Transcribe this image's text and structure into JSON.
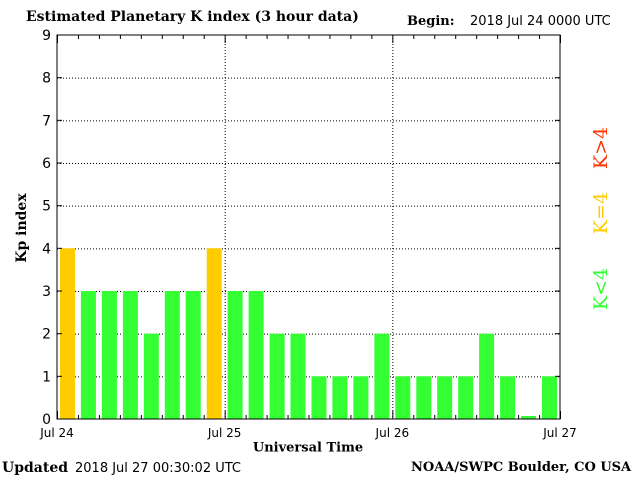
{
  "header": {
    "title": "Estimated Planetary K index (3 hour data)",
    "begin_label": "Begin:",
    "begin_value": "2018 Jul 24 0000 UTC"
  },
  "footer": {
    "updated_label": "Updated",
    "updated_value": "2018 Jul 27 00:30:02 UTC",
    "credit": "NOAA/SWPC Boulder, CO USA"
  },
  "legend": {
    "items": [
      {
        "label": "K<4",
        "color": "#33ff33"
      },
      {
        "label": "K=4",
        "color": "#ffcc00"
      },
      {
        "label": "K>4",
        "color": "#ff3300"
      }
    ]
  },
  "chart_data": {
    "type": "bar",
    "title": "Estimated Planetary K index (3 hour data)",
    "xlabel": "Universal Time",
    "ylabel": "Kp index",
    "ylim": [
      0,
      9
    ],
    "yticks": [
      "0",
      "1",
      "2",
      "3",
      "4",
      "5",
      "6",
      "7",
      "8",
      "9"
    ],
    "x_range": [
      "2018 Jul 24 00:00",
      "2018 Jul 27 00:00"
    ],
    "xtick_labels": [
      "Jul 24",
      "Jul 25",
      "Jul 26",
      "Jul 27"
    ],
    "interval": "3 hour",
    "grid": true,
    "values": [
      4,
      3,
      3,
      3,
      2,
      3,
      3,
      4,
      3,
      3,
      2,
      2,
      1,
      1,
      1,
      2,
      1,
      1,
      1,
      1,
      2,
      1,
      0.07,
      1
    ],
    "colors": {
      "below4": "#33ff33",
      "equal4": "#ffcc00",
      "above4": "#ff3300"
    }
  }
}
